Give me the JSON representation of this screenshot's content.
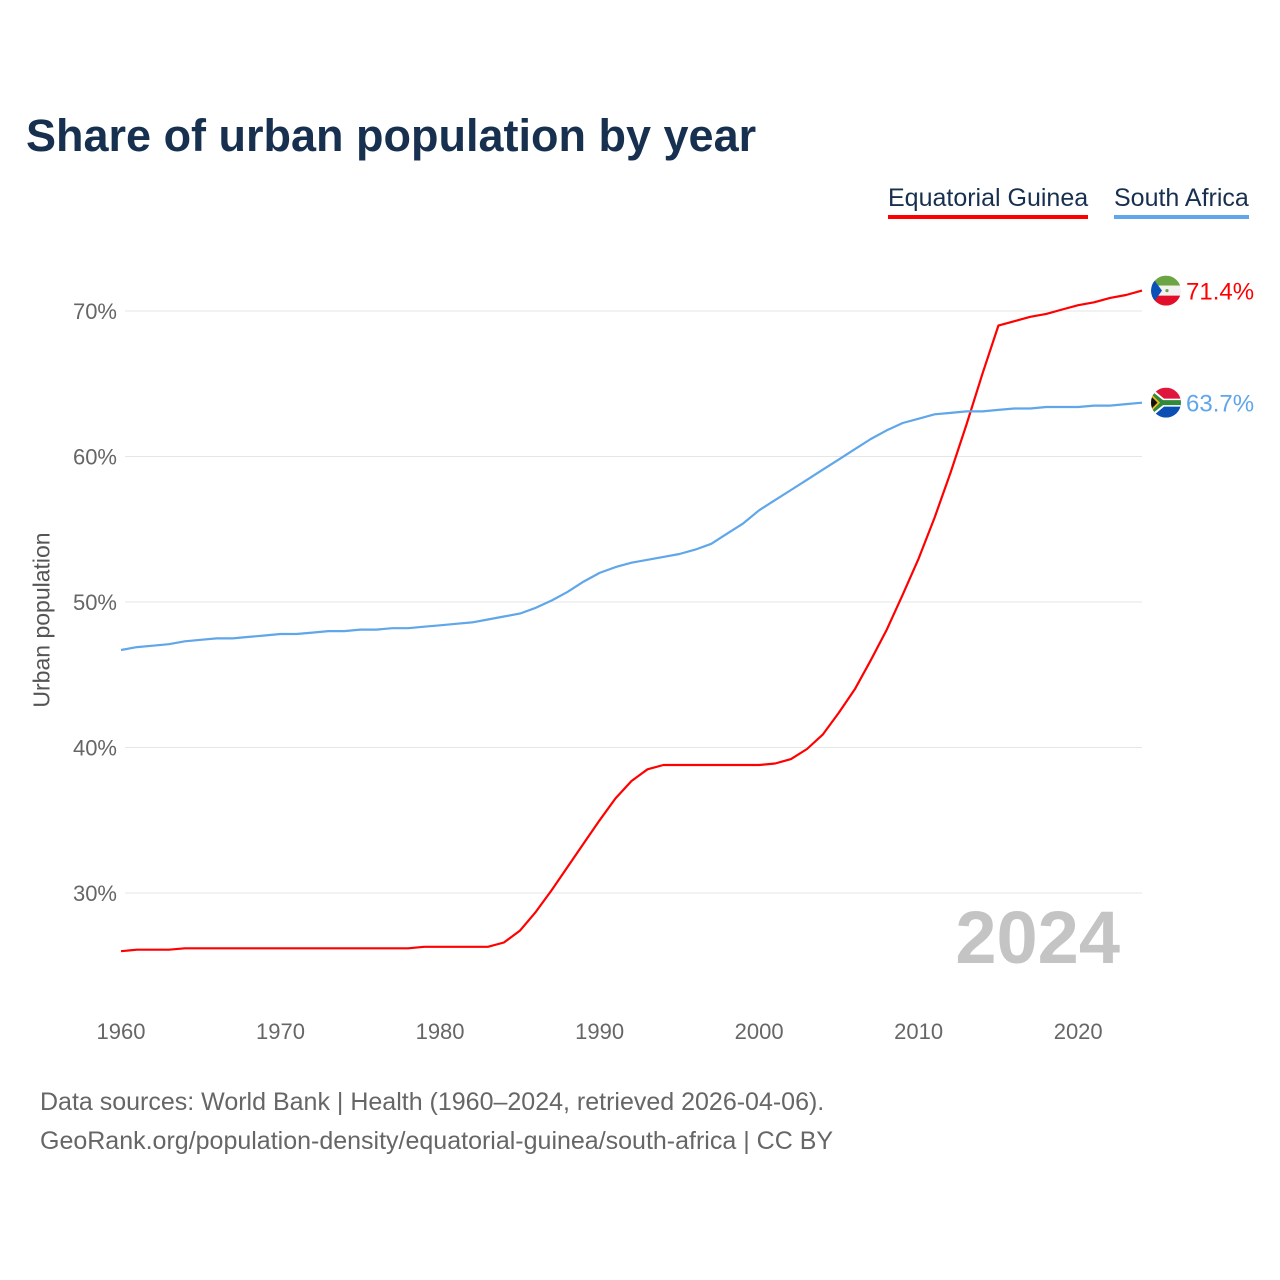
{
  "title": "Share of urban population by year",
  "legend": [
    {
      "name": "Equatorial Guinea",
      "color": "#ff0000"
    },
    {
      "name": "South Africa",
      "color": "#5fa6ea"
    }
  ],
  "footer": {
    "line1": "Data sources: World Bank | Health (1960–2024, retrieved 2026-04-06).",
    "line2": "GeoRank.org/population-density/equatorial-guinea/south-africa | CC BY"
  },
  "chart_data": {
    "type": "line",
    "title": "Share of urban population by year",
    "xlabel": "",
    "ylabel": "Urban population",
    "year_watermark": "2024",
    "x_start": 1960,
    "x_end": 2024,
    "xlim": [
      1960,
      2024
    ],
    "ylim": [
      23.5,
      73
    ],
    "x_ticks": [
      1960,
      1970,
      1980,
      1990,
      2000,
      2010,
      2020
    ],
    "y_ticks": [
      30,
      40,
      50,
      60,
      70
    ],
    "y_tick_labels": [
      "30%",
      "40%",
      "50%",
      "60%",
      "70%"
    ],
    "x_tick_labels": [
      "1960",
      "1970",
      "1980",
      "1990",
      "2000",
      "2010",
      "2020"
    ],
    "grid": true,
    "legend_position": "top-right",
    "series": [
      {
        "name": "Equatorial Guinea",
        "color": "#ff0000",
        "end_label": "71.4%",
        "flag": "equatorial-guinea-flag",
        "values": [
          26.0,
          26.1,
          26.1,
          26.1,
          26.2,
          26.2,
          26.2,
          26.2,
          26.2,
          26.2,
          26.2,
          26.2,
          26.2,
          26.2,
          26.2,
          26.2,
          26.2,
          26.2,
          26.2,
          26.3,
          26.3,
          26.3,
          26.3,
          26.3,
          26.6,
          27.4,
          28.7,
          30.2,
          31.8,
          33.4,
          35.0,
          36.5,
          37.7,
          38.5,
          38.8,
          38.8,
          38.8,
          38.8,
          38.8,
          38.8,
          38.8,
          38.9,
          39.2,
          39.9,
          40.9,
          42.4,
          44.0,
          46.0,
          48.1,
          50.5,
          53.0,
          55.8,
          58.9,
          62.2,
          65.7,
          69.0,
          69.3,
          69.6,
          69.8,
          70.1,
          70.4,
          70.6,
          70.9,
          71.1,
          71.4
        ]
      },
      {
        "name": "South Africa",
        "color": "#5fa6ea",
        "end_label": "63.7%",
        "flag": "south-africa-flag",
        "values": [
          46.7,
          46.9,
          47.0,
          47.1,
          47.3,
          47.4,
          47.5,
          47.5,
          47.6,
          47.7,
          47.8,
          47.8,
          47.9,
          48.0,
          48.0,
          48.1,
          48.1,
          48.2,
          48.2,
          48.3,
          48.4,
          48.5,
          48.6,
          48.8,
          49.0,
          49.2,
          49.6,
          50.1,
          50.7,
          51.4,
          52.0,
          52.4,
          52.7,
          52.9,
          53.1,
          53.3,
          53.6,
          54.0,
          54.7,
          55.4,
          56.3,
          57.0,
          57.7,
          58.4,
          59.1,
          59.8,
          60.5,
          61.2,
          61.8,
          62.3,
          62.6,
          62.9,
          63.0,
          63.1,
          63.1,
          63.2,
          63.3,
          63.3,
          63.4,
          63.4,
          63.4,
          63.5,
          63.5,
          63.6,
          63.7
        ]
      }
    ]
  }
}
